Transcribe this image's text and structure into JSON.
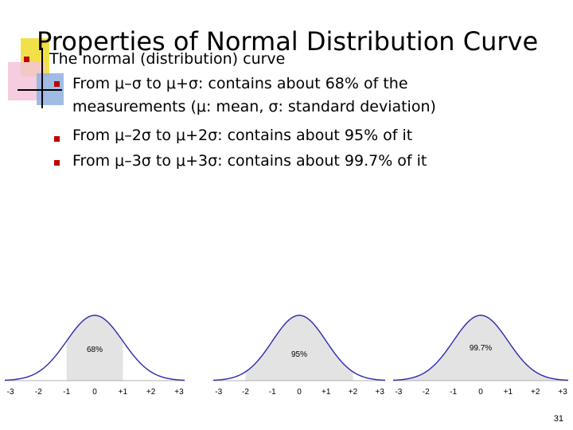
{
  "slide": {
    "title": "Properties of Normal Distribution Curve",
    "main_bullet": "The normal (distribution) curve",
    "sub_bullets": [
      {
        "line1": "From μ–σ to μ+σ: contains about 68% of the",
        "line2": "measurements  (μ: mean, σ: standard deviation)"
      },
      {
        "line1": " From μ–2σ to μ+2σ: contains about 95% of it"
      },
      {
        "line1": "From μ–3σ to μ+3σ: contains about 99.7% of it"
      }
    ],
    "page_number": "31"
  },
  "colors": {
    "bullet": "#c00000",
    "curve": "#2b2bb0",
    "shade": "#e3e3e3"
  },
  "curves": [
    {
      "label": "68%",
      "shade_from": -1,
      "shade_to": 1,
      "ticks": [
        "-3",
        "-2",
        "-1",
        "0",
        "+1",
        "+2",
        "+3"
      ]
    },
    {
      "label": "95%",
      "shade_from": -2,
      "shade_to": 2,
      "ticks": [
        "-3",
        "-2",
        "-1",
        "0",
        "+1",
        "+2",
        "+3"
      ]
    },
    {
      "label": "99.7%",
      "shade_from": -3,
      "shade_to": 3,
      "ticks": [
        "-3",
        "-2",
        "-1",
        "0",
        "+1",
        "+2",
        "+3"
      ]
    }
  ]
}
